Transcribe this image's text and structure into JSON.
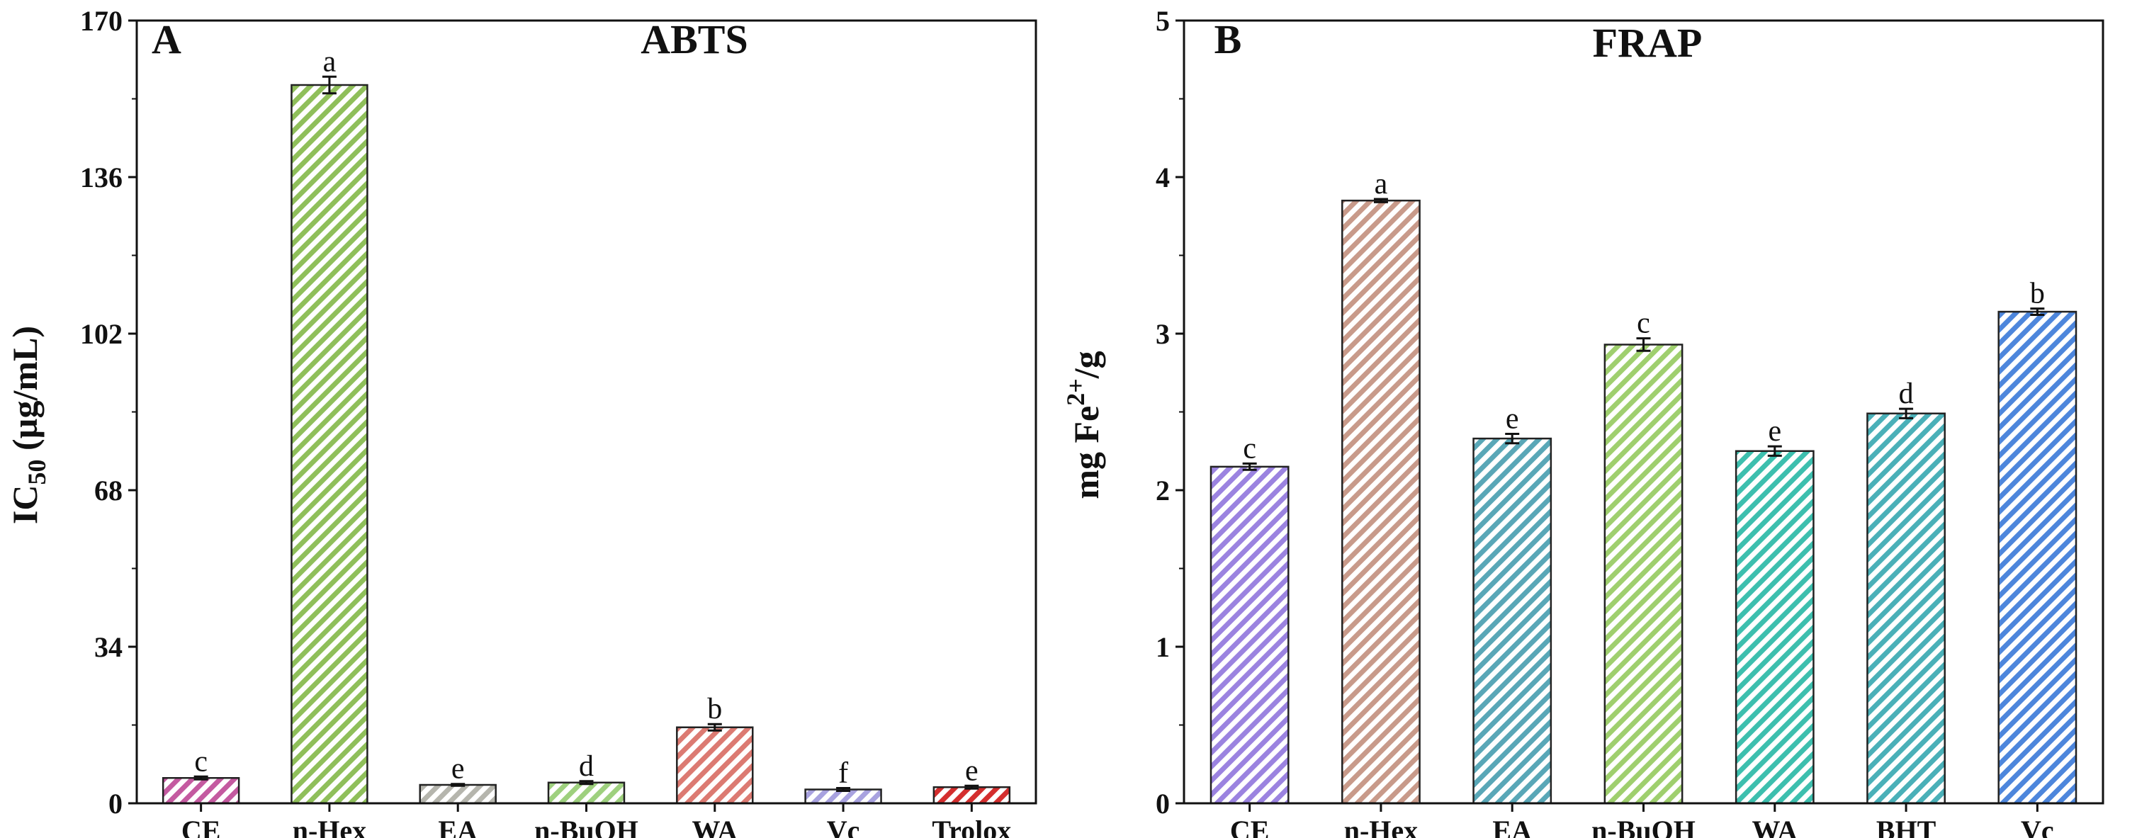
{
  "chart_data": [
    {
      "type": "bar",
      "panel_label": "A",
      "title": "ABTS",
      "ylabel": {
        "main": "IC",
        "sub": "50",
        "rest": " (µg/mL)"
      },
      "xlabel": "",
      "ylim": [
        0,
        170
      ],
      "yticks": [
        "0",
        "34",
        "68",
        "102",
        "136",
        "170"
      ],
      "categories": [
        "CE",
        "n-Hex",
        "EA",
        "n-BuOH",
        "WA",
        "Vc",
        "Trolox"
      ],
      "values": [
        5.5,
        156,
        4.0,
        4.5,
        16.5,
        3.0,
        3.5
      ],
      "errors": [
        0.3,
        1.8,
        0.2,
        0.3,
        0.7,
        0.3,
        0.3
      ],
      "letters": [
        "c",
        "a",
        "e",
        "d",
        "b",
        "f",
        "e"
      ],
      "colors": [
        "#c45aa0",
        "#8fbf5a",
        "#b5b5ad",
        "#9ed07e",
        "#dc7a72",
        "#a8a2df",
        "#d42e2e"
      ],
      "grid": false
    },
    {
      "type": "bar",
      "panel_label": "B",
      "title": "FRAP",
      "ylabel": {
        "main": "mg Fe",
        "sup": "2+",
        "rest": "/g"
      },
      "xlabel": "",
      "ylim": [
        0,
        5
      ],
      "yticks": [
        "0",
        "1",
        "2",
        "3",
        "4",
        "5"
      ],
      "categories": [
        "CE",
        "n-Hex",
        "EA",
        "n-BuOH",
        "WA",
        "BHT",
        "Vc"
      ],
      "values": [
        2.15,
        3.85,
        2.33,
        2.93,
        2.25,
        2.49,
        3.14
      ],
      "errors": [
        0.02,
        0.01,
        0.03,
        0.04,
        0.03,
        0.03,
        0.02
      ],
      "letters": [
        "c",
        "a",
        "e",
        "c",
        "e",
        "d",
        "b"
      ],
      "colors": [
        "#9b83e0",
        "#c89a8a",
        "#59a7b7",
        "#9fcf6e",
        "#3dbfae",
        "#4ab0b8",
        "#4d86dc"
      ],
      "grid": false
    }
  ]
}
